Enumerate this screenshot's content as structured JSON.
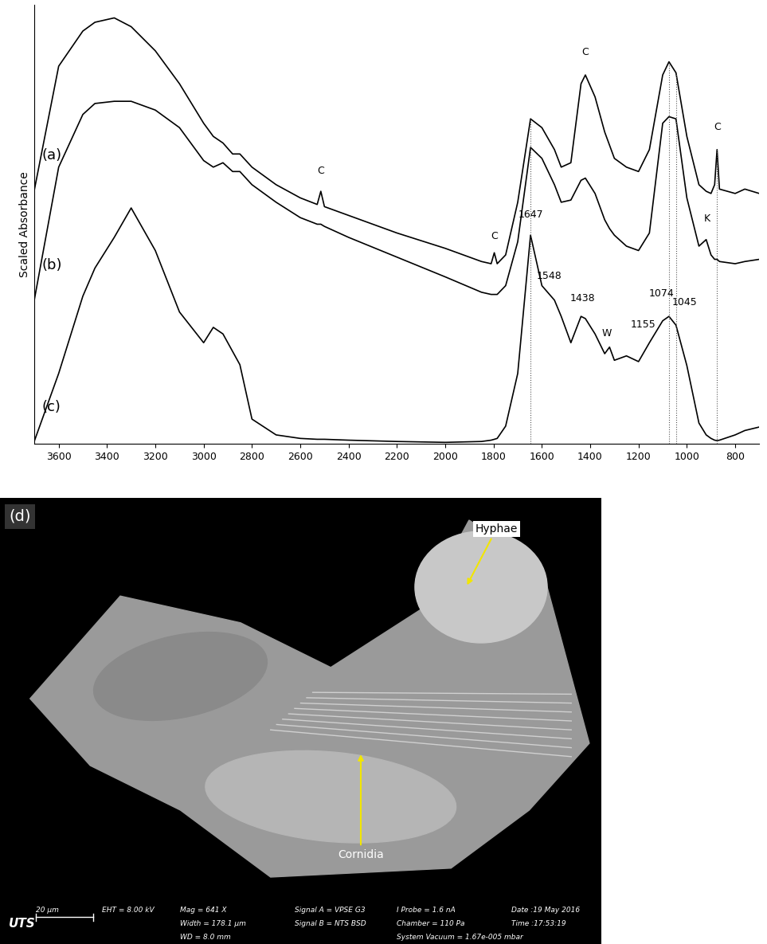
{
  "chart_data": {
    "type": "line",
    "y_label": "Scaled Absorbance",
    "x": [
      3700,
      3600,
      3500,
      3450,
      3370,
      3300,
      3200,
      3100,
      3000,
      2960,
      2920,
      2880,
      2850,
      2800,
      2700,
      2600,
      2530,
      2515,
      2500,
      2400,
      2200,
      2000,
      1850,
      1810,
      1797,
      1785,
      1750,
      1700,
      1647,
      1600,
      1548,
      1520,
      1480,
      1438,
      1420,
      1380,
      1340,
      1320,
      1300,
      1250,
      1200,
      1155,
      1100,
      1074,
      1045,
      1000,
      950,
      920,
      900,
      885,
      875,
      865,
      800,
      760,
      700
    ],
    "series": [
      {
        "name": "(a)",
        "color": "#000000",
        "values": [
          58,
          86,
          94,
          96,
          97,
          95,
          89.5,
          82,
          73,
          70,
          68.5,
          66,
          66,
          63,
          59,
          56,
          54.5,
          57.5,
          54,
          52,
          48,
          44.5,
          41.5,
          41,
          43.5,
          41,
          43,
          55,
          74,
          72,
          67,
          63,
          64,
          82,
          84,
          79,
          71,
          68,
          65,
          63,
          62,
          67,
          84,
          87,
          84.5,
          70,
          59,
          57.5,
          57,
          59,
          67,
          58,
          57,
          58,
          57
        ]
      },
      {
        "name": "(b)",
        "color": "#000000",
        "values": [
          33,
          63,
          75,
          77.5,
          78,
          78,
          76,
          72,
          64.5,
          63,
          64,
          62,
          62,
          59,
          55,
          51.5,
          50,
          50,
          49.5,
          47,
          42.5,
          38,
          34.5,
          34,
          34,
          34,
          36,
          46,
          67.5,
          65,
          59,
          55,
          55.5,
          60,
          60.5,
          57,
          51,
          49,
          47.5,
          45,
          44,
          48,
          73,
          74.5,
          74,
          56,
          45,
          46.5,
          43,
          42,
          42,
          41.5,
          41,
          41.5,
          42
        ]
      },
      {
        "name": "(c)",
        "color": "#000000",
        "values": [
          0.7,
          16,
          33.6,
          40,
          47,
          53.7,
          44,
          30,
          23,
          26.5,
          25,
          21,
          18,
          5.6,
          2,
          1.2,
          1,
          1,
          1,
          0.8,
          0.5,
          0.3,
          0.5,
          0.8,
          1,
          1.2,
          4,
          16,
          47.5,
          36,
          32.7,
          29,
          23,
          29,
          28.5,
          25,
          20.5,
          22,
          19,
          20,
          18.7,
          23,
          28,
          29,
          27,
          17.8,
          4.7,
          2,
          1.2,
          0.8,
          0.7,
          0.8,
          2,
          3,
          3.8
        ]
      }
    ],
    "xlim": [
      3700,
      700
    ],
    "ylim": [
      0,
      100
    ],
    "xticks": [
      3600,
      3400,
      3200,
      3000,
      2800,
      2600,
      2400,
      2200,
      2000,
      1800,
      1600,
      1400,
      1200,
      1000,
      800
    ],
    "tick_labels": "x",
    "grid": false,
    "vlines": [
      1647,
      1074,
      1045,
      875
    ],
    "annotations": [
      {
        "text": "C",
        "x": 2515,
        "y": 61
      },
      {
        "text": "C",
        "x": 1797,
        "y": 46
      },
      {
        "text": "C",
        "x": 1420,
        "y": 88
      },
      {
        "text": "C",
        "x": 875,
        "y": 71
      },
      {
        "text": "K",
        "x": 915,
        "y": 50
      },
      {
        "text": "1647",
        "x": 1647,
        "y": 51
      },
      {
        "text": "1548",
        "x": 1570,
        "y": 37
      },
      {
        "text": "1438",
        "x": 1430,
        "y": 32
      },
      {
        "text": "W",
        "x": 1330,
        "y": 24
      },
      {
        "text": "1155",
        "x": 1180,
        "y": 26
      },
      {
        "text": "1074",
        "x": 1105,
        "y": 33
      },
      {
        "text": "1045",
        "x": 1010,
        "y": 31
      }
    ]
  },
  "image_panel": {
    "panel_label": "(d)",
    "labels": [
      "Hyphae",
      "Cornidia"
    ],
    "info_bar": [
      [
        "20 μm",
        "EHT = 8.00 kV",
        "Mag = 641 X",
        "Signal A = VPSE G3",
        "I Probe = 1.6 nA",
        "Date :19 May 2016"
      ],
      [
        "UTS",
        "Width = 178.1 μm",
        "Signal B = NTS BSD",
        "Chamber = 110 Pa",
        "Time :17:53:19"
      ],
      [
        "WD = 8.0 mm",
        "System Vacuum = 1.67e-005 mbar"
      ]
    ]
  }
}
